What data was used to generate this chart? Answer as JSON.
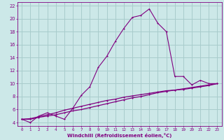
{
  "xlabel": "Windchill (Refroidissement éolien,°C)",
  "bg_color": "#cce8e8",
  "grid_color": "#a8cccc",
  "line_color": "#800080",
  "xlim": [
    -0.5,
    23.5
  ],
  "ylim": [
    3.5,
    22.5
  ],
  "xticks": [
    0,
    1,
    2,
    3,
    4,
    5,
    6,
    7,
    8,
    9,
    10,
    11,
    12,
    13,
    14,
    15,
    16,
    17,
    18,
    19,
    20,
    21,
    22,
    23
  ],
  "yticks": [
    4,
    6,
    8,
    10,
    12,
    14,
    16,
    18,
    20,
    22
  ],
  "curve1_x": [
    0,
    1,
    2,
    3,
    4,
    5,
    6,
    7,
    8,
    9,
    10,
    11,
    12,
    13,
    14,
    15,
    16,
    17,
    18,
    19,
    20,
    21,
    22,
    23
  ],
  "curve1_y": [
    4.5,
    4.0,
    5.0,
    5.5,
    5.0,
    4.5,
    6.2,
    8.2,
    9.5,
    12.5,
    14.2,
    16.5,
    18.5,
    20.2,
    20.5,
    21.5,
    19.3,
    18.0,
    11.1,
    11.1,
    9.8,
    10.5,
    10.0,
    10.0
  ],
  "curve2_x": [
    0,
    1,
    2,
    3,
    4,
    5,
    6,
    7,
    8,
    9,
    10,
    11,
    12,
    13,
    14,
    15,
    16,
    17,
    18,
    19,
    20,
    21,
    22,
    23
  ],
  "curve2_y": [
    4.5,
    4.5,
    4.8,
    5.0,
    5.2,
    5.5,
    5.8,
    6.0,
    6.3,
    6.6,
    6.9,
    7.2,
    7.5,
    7.8,
    8.0,
    8.3,
    8.6,
    8.8,
    9.0,
    9.2,
    9.4,
    9.6,
    9.8,
    10.0
  ],
  "curve3_x": [
    0,
    1,
    2,
    3,
    4,
    5,
    6,
    7,
    8,
    9,
    10,
    11,
    12,
    13,
    14,
    15,
    16,
    17,
    18,
    19,
    20,
    21,
    22,
    23
  ],
  "curve3_y": [
    4.5,
    4.6,
    4.9,
    5.2,
    5.5,
    5.9,
    6.2,
    6.5,
    6.8,
    7.1,
    7.4,
    7.6,
    7.9,
    8.1,
    8.3,
    8.5,
    8.7,
    8.9,
    9.0,
    9.1,
    9.3,
    9.5,
    9.7,
    10.0
  ]
}
